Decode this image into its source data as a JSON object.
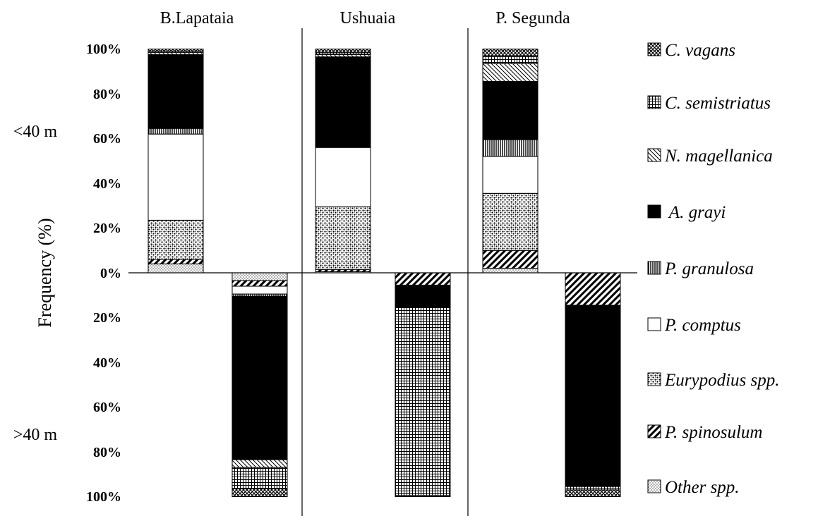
{
  "chart_data": {
    "type": "bar",
    "subtype": "stacked-percent, mirrored (upper panel above zero, lower panel below zero)",
    "ylabel": "Frequency (%)",
    "y_tick_labels_upper": [
      "0%",
      "20%",
      "40%",
      "60%",
      "80%",
      "100%"
    ],
    "y_tick_labels_lower": [
      "20%",
      "40%",
      "60%",
      "80%",
      "100%"
    ],
    "depth_labels": {
      "upper": "<40 m",
      "lower": ">40 m"
    },
    "sites": [
      "B.Lapataia",
      "Ushuaia",
      "P. Segunda"
    ],
    "legend_position": "right",
    "legend": [
      {
        "key": "cvagans",
        "label": "C. vagans",
        "pattern": "crosshatch"
      },
      {
        "key": "csemistriatus",
        "label": "C. semistriatus",
        "pattern": "grid"
      },
      {
        "key": "nmagellanica",
        "label": "N. magellanica",
        "pattern": "diag-light"
      },
      {
        "key": "agrayi",
        "label": " A. grayi",
        "pattern": "solid-black"
      },
      {
        "key": "pgranulosa",
        "label": "P. granulosa",
        "pattern": "vertical"
      },
      {
        "key": "pcomptus",
        "label": "P. comptus",
        "pattern": "white"
      },
      {
        "key": "eurypodius",
        "label": "Eurypodius spp.",
        "pattern": "dots"
      },
      {
        "key": "pspinosulum",
        "label": "P. spinosulum",
        "pattern": "diag-bold"
      },
      {
        "key": "other",
        "label": "Other spp.",
        "pattern": "fine-dots"
      }
    ],
    "stack_order_from_baseline": [
      "other",
      "pspinosulum",
      "eurypodius",
      "pcomptus",
      "pgranulosa",
      "agrayi",
      "nmagellanica",
      "csemistriatus",
      "cvagans"
    ],
    "series_upper_lt40m": {
      "B.Lapataia": {
        "other": 4,
        "pspinosulum": 2,
        "eurypodius": 17.5,
        "pcomptus": 38.5,
        "pgranulosa": 2.5,
        "agrayi": 33,
        "nmagellanica": 1,
        "csemistriatus": 0.5,
        "cvagans": 1
      },
      "Ushuaia": {
        "other": 0.5,
        "pspinosulum": 1,
        "eurypodius": 28,
        "pcomptus": 26.5,
        "pgranulosa": 0,
        "agrayi": 40.5,
        "nmagellanica": 1,
        "csemistriatus": 1,
        "cvagans": 1.5
      },
      "P. Segunda": {
        "other": 2,
        "pspinosulum": 8,
        "eurypodius": 25.5,
        "pcomptus": 16.5,
        "pgranulosa": 7.5,
        "agrayi": 26,
        "nmagellanica": 8,
        "csemistriatus": 3.5,
        "cvagans": 3
      }
    },
    "series_lower_gt40m": {
      "B.Lapataia": {
        "other": 3.5,
        "pspinosulum": 2.5,
        "eurypodius": 0,
        "pcomptus": 3.5,
        "pgranulosa": 1,
        "agrayi": 73,
        "nmagellanica": 3.5,
        "csemistriatus": 9.5,
        "cvagans": 3.5
      },
      "Ushuaia": {
        "other": 0,
        "pspinosulum": 5.5,
        "eurypodius": 0,
        "pcomptus": 0,
        "pgranulosa": 0,
        "agrayi": 10,
        "nmagellanica": 0,
        "csemistriatus": 84,
        "cvagans": 0.5
      },
      "P. Segunda": {
        "other": 0,
        "pspinosulum": 14.5,
        "eurypodius": 0,
        "pcomptus": 0,
        "pgranulosa": 0,
        "agrayi": 81,
        "nmagellanica": 0,
        "csemistriatus": 1.5,
        "cvagans": 3
      }
    },
    "grid": false
  }
}
